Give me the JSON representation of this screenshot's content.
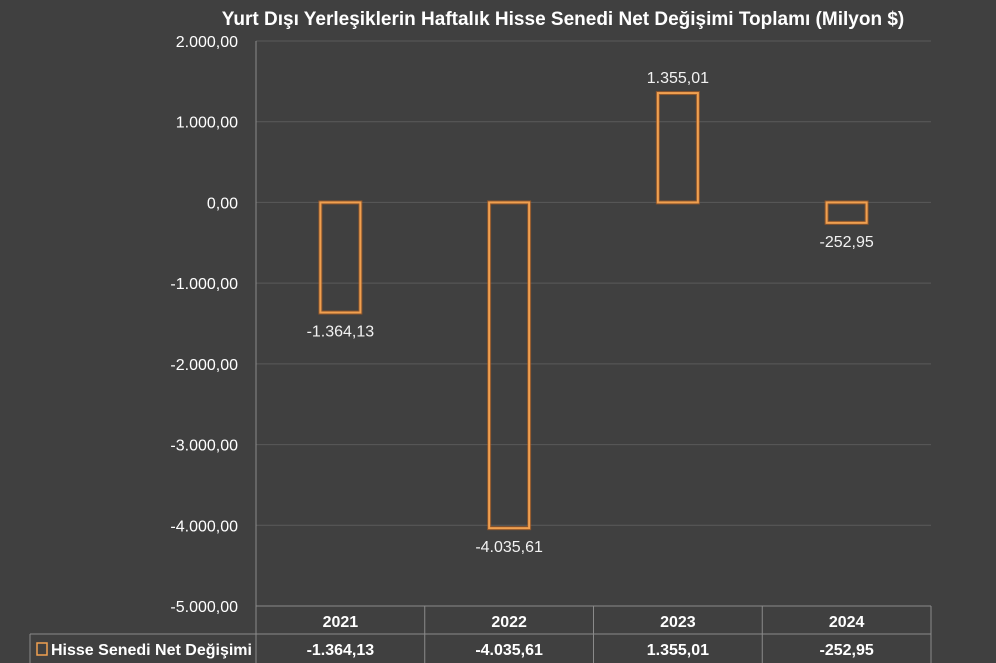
{
  "chart_data": {
    "type": "bar",
    "title": "Yurt Dışı Yerleşiklerin Haftalık Hisse Senedi Net Değişimi Toplamı (Milyon $)",
    "categories": [
      "2021",
      "2022",
      "2023",
      "2024"
    ],
    "series": [
      {
        "name": "Hisse Senedi Net Değişimi",
        "values": [
          -1364.13,
          -4035.61,
          1355.01,
          -252.95
        ],
        "labels": [
          "-1.364,13",
          "-4.035,61",
          "1.355,01",
          "-252,95"
        ],
        "color": "#f0a050"
      }
    ],
    "ylim": [
      -5000,
      2000
    ],
    "yticks": [
      2000,
      1000,
      0,
      -1000,
      -2000,
      -3000,
      -4000,
      -5000
    ],
    "ytick_labels": [
      "2.000,00",
      "1.000,00",
      "0,00",
      "-1.000,00",
      "-2.000,00",
      "-3.000,00",
      "-4.000,00",
      "-5.000,00"
    ],
    "grid": true,
    "data_table": true,
    "legend": "data-table"
  },
  "colors": {
    "background": "#404040",
    "bar_outline": "#f0a050",
    "grid": "#5a5a5a",
    "text": "#ffffff"
  }
}
